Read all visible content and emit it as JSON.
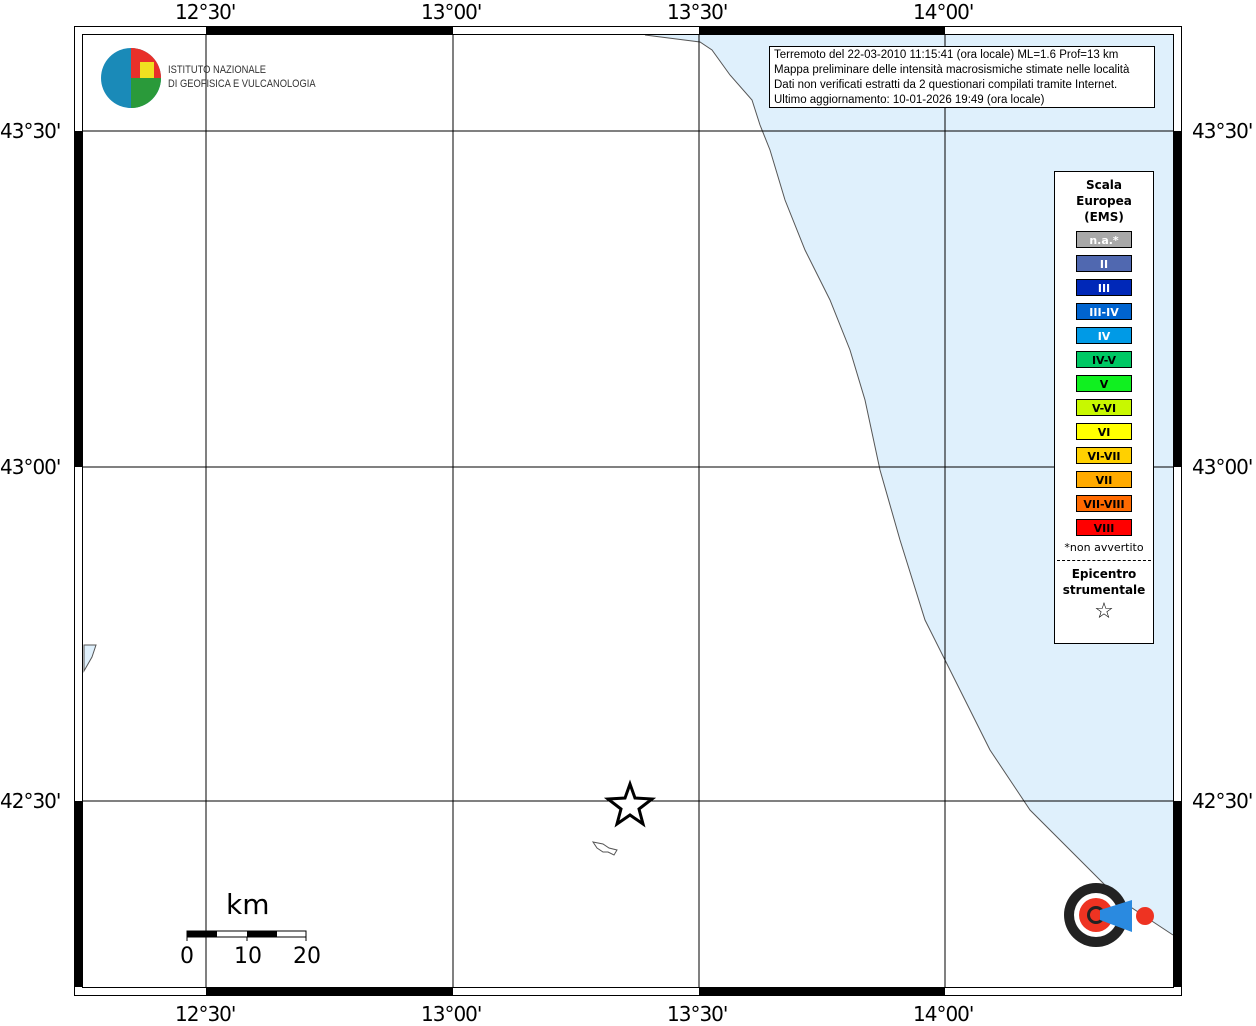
{
  "lon_labels": [
    "12°30'",
    "13°00'",
    "13°30'",
    "14°00'"
  ],
  "lat_labels": [
    "43°30'",
    "43°00'",
    "42°30'"
  ],
  "institute": {
    "line1": "ISTITUTO NAZIONALE",
    "line2": "DI GEOFISICA E VULCANOLOGIA"
  },
  "info": {
    "line1": "Terremoto del 22-03-2010 11:15:41 (ora locale) ML=1.6 Prof=13 km",
    "line2": "Mappa preliminare delle intensità macrosismiche stimate nelle località",
    "line3": "Dati non verificati estratti da 2 questionari compilati tramite Internet.",
    "line4": "Ultimo aggiornamento: 10-01-2026 19:49 (ora locale)"
  },
  "legend": {
    "title": [
      "Scala",
      "Europea",
      "(EMS)"
    ],
    "items": [
      {
        "label": "n.a.*",
        "color": "#a8a8a8",
        "text": "#ffffff"
      },
      {
        "label": "II",
        "color": "#5068b0",
        "text": "#ffffff"
      },
      {
        "label": "III",
        "color": "#0028b8",
        "text": "#ffffff"
      },
      {
        "label": "III-IV",
        "color": "#0064d0",
        "text": "#ffffff"
      },
      {
        "label": "IV",
        "color": "#009ae6",
        "text": "#ffffff"
      },
      {
        "label": "IV-V",
        "color": "#00c864",
        "text": "#000000"
      },
      {
        "label": "V",
        "color": "#10f020",
        "text": "#000000"
      },
      {
        "label": "V-VI",
        "color": "#c8f800",
        "text": "#000000"
      },
      {
        "label": "VI",
        "color": "#ffff00",
        "text": "#000000"
      },
      {
        "label": "VI-VII",
        "color": "#ffd000",
        "text": "#000000"
      },
      {
        "label": "VII",
        "color": "#ffaa00",
        "text": "#000000"
      },
      {
        "label": "VII-VIII",
        "color": "#ff6a00",
        "text": "#000000"
      },
      {
        "label": "VIII",
        "color": "#ff0000",
        "text": "#000000"
      }
    ],
    "note": "*non avvertito",
    "epicenter": [
      "Epicentro",
      "strumentale"
    ]
  },
  "scale": {
    "unit": "km",
    "ticks": [
      "0",
      "10",
      "20"
    ]
  },
  "haisentito_logo": "www.haisentitoilterremoto.it",
  "colors": {
    "sea": "#dff0fc",
    "coast": "#555555"
  }
}
